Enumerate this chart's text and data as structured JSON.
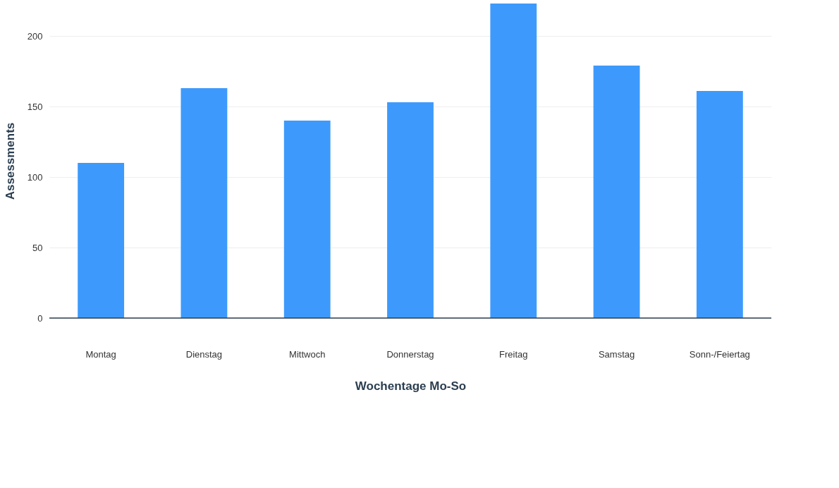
{
  "chart_data": {
    "type": "bar",
    "xlabel": "Wochentage Mo-So",
    "ylabel": "Assessments",
    "categories": [
      "Montag",
      "Dienstag",
      "Mittwoch",
      "Donnerstag",
      "Freitag",
      "Samstag",
      "Sonn-/Feiertag"
    ],
    "values": [
      110,
      163,
      140,
      153,
      223,
      179,
      161
    ],
    "color": "#3d9afc",
    "ylim": [
      0,
      223
    ],
    "yticks": [
      0,
      50,
      100,
      150,
      200
    ],
    "grid": "y"
  }
}
